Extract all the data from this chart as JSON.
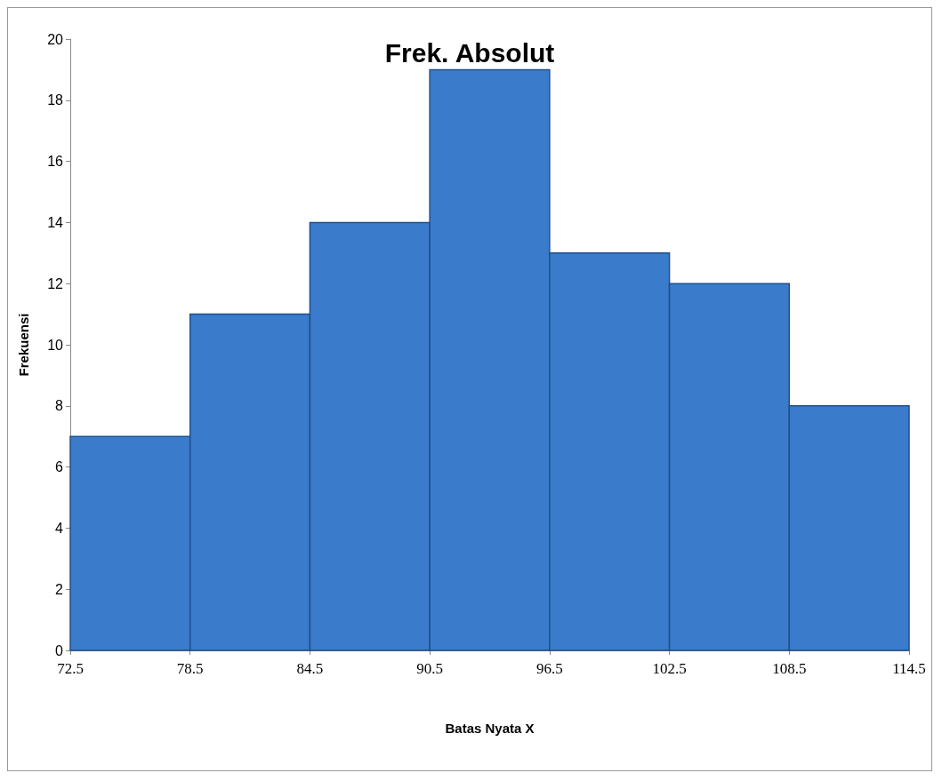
{
  "chart_data": {
    "type": "histogram",
    "title": "Frek. Absolut",
    "xlabel": "Batas Nyata X",
    "ylabel": "Frekuensi",
    "bins": [
      72.5,
      78.5,
      84.5,
      90.5,
      96.5,
      102.5,
      108.5,
      114.5
    ],
    "values": [
      7,
      11,
      14,
      19,
      13,
      12,
      8
    ],
    "color": "#3a7ccb",
    "xlim": [
      72.5,
      114.5
    ],
    "xticks": [
      72.5,
      78.5,
      84.5,
      90.5,
      96.5,
      102.5,
      108.5,
      114.5
    ],
    "ylim": [
      0,
      20
    ],
    "yticks": [
      0,
      2,
      4,
      6,
      8,
      10,
      12,
      14,
      16,
      18,
      20
    ],
    "grid": false
  }
}
